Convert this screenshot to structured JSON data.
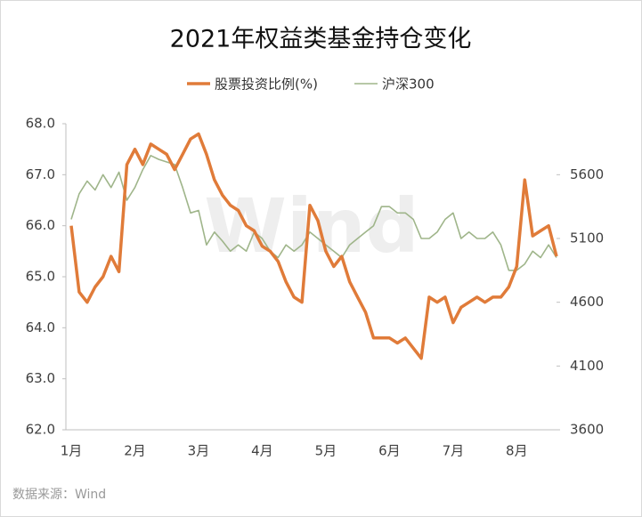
{
  "chart_data": {
    "type": "line",
    "title": "2021年权益类基金持仓变化",
    "source": "数据来源：Wind",
    "watermark": "Wind",
    "categories": [
      "1月",
      null,
      null,
      null,
      null,
      null,
      null,
      null,
      "2月",
      null,
      null,
      null,
      null,
      null,
      null,
      null,
      "3月",
      null,
      null,
      null,
      null,
      null,
      null,
      null,
      "4月",
      null,
      null,
      null,
      null,
      null,
      null,
      null,
      "5月",
      null,
      null,
      null,
      null,
      null,
      null,
      null,
      "6月",
      null,
      null,
      null,
      null,
      null,
      null,
      null,
      "7月",
      null,
      null,
      null,
      null,
      null,
      null,
      null,
      "8月",
      null,
      null,
      null,
      null,
      null
    ],
    "series": [
      {
        "name": "股票投资比例(%)",
        "color": "#e07b39",
        "values": [
          66.0,
          64.7,
          64.5,
          64.8,
          65.0,
          65.4,
          65.1,
          67.2,
          67.5,
          67.2,
          67.6,
          67.5,
          67.4,
          67.1,
          67.4,
          67.7,
          67.8,
          67.4,
          66.9,
          66.6,
          66.4,
          66.3,
          66.0,
          65.9,
          65.6,
          65.5,
          65.3,
          64.9,
          64.6,
          64.5,
          66.4,
          66.1,
          65.5,
          65.2,
          65.4,
          64.9,
          64.6,
          64.3,
          63.8,
          63.8,
          63.8,
          63.7,
          63.8,
          63.6,
          63.4,
          64.6,
          64.5,
          64.6,
          64.1,
          64.4,
          64.5,
          64.6,
          64.5,
          64.6,
          64.6,
          64.8,
          65.2,
          66.9,
          65.8,
          65.9,
          66.0,
          65.4
        ]
      },
      {
        "name": "沪深300",
        "color": "#9fb58a",
        "axis": "y2",
        "values": [
          5250,
          5450,
          5550,
          5480,
          5600,
          5500,
          5620,
          5400,
          5500,
          5640,
          5750,
          5720,
          5700,
          5680,
          5500,
          5300,
          5320,
          5050,
          5150,
          5080,
          5000,
          5050,
          5000,
          5150,
          5100,
          5000,
          4950,
          5050,
          5000,
          5050,
          5150,
          5100,
          5050,
          5000,
          4950,
          5050,
          5100,
          5150,
          5200,
          5350,
          5350,
          5300,
          5300,
          5250,
          5100,
          5100,
          5150,
          5250,
          5300,
          5100,
          5150,
          5100,
          5100,
          5150,
          5050,
          4850,
          4850,
          4900,
          5000,
          4950,
          5050,
          4950
        ]
      }
    ],
    "ylim": [
      62,
      68
    ],
    "yticks": [
      {
        "value": 62,
        "label": "62.0"
      },
      {
        "value": 63,
        "label": "63.0"
      },
      {
        "value": 64,
        "label": "64.0"
      },
      {
        "value": 65,
        "label": "65.0"
      },
      {
        "value": 66,
        "label": "66.0"
      },
      {
        "value": 67,
        "label": "67.0"
      },
      {
        "value": 68,
        "label": "68.0"
      }
    ],
    "y2lim": [
      3600,
      6000
    ],
    "y2ticks": [
      3600,
      4100,
      4600,
      5100,
      5600
    ]
  }
}
